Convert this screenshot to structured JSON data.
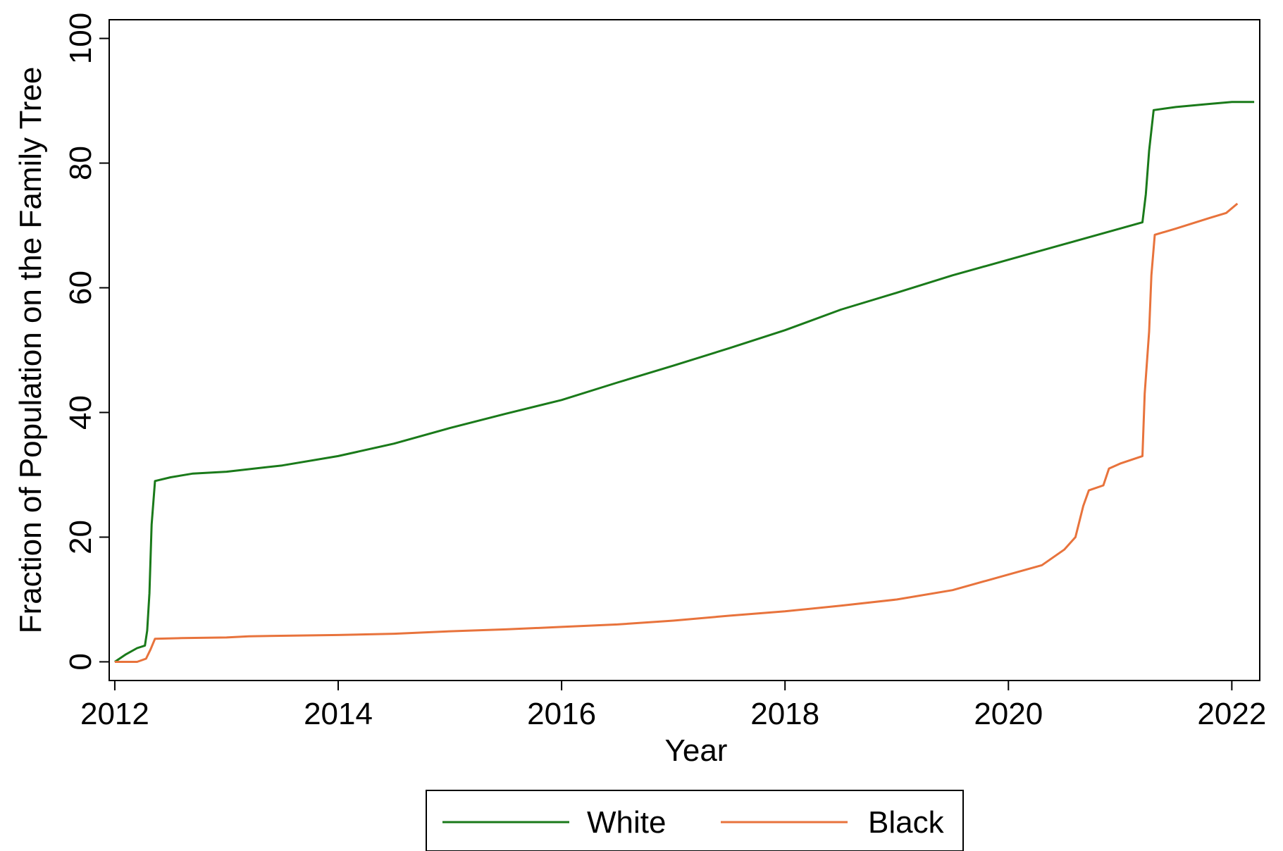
{
  "chart_data": {
    "type": "line",
    "title": "",
    "xlabel": "Year",
    "ylabel": "Fraction of Population on the Family Tree",
    "xlim": [
      2011.95,
      2022.25
    ],
    "ylim": [
      -3,
      103
    ],
    "xticks": [
      2012,
      2014,
      2016,
      2018,
      2020,
      2022
    ],
    "yticks": [
      0,
      20,
      40,
      60,
      80,
      100
    ],
    "grid": false,
    "legend_position": "bottom",
    "series": [
      {
        "name": "White",
        "color": "#1a7a1a",
        "points": [
          [
            2012.0,
            0
          ],
          [
            2012.1,
            1.2
          ],
          [
            2012.2,
            2.2
          ],
          [
            2012.27,
            2.6
          ],
          [
            2012.29,
            5
          ],
          [
            2012.31,
            11
          ],
          [
            2012.33,
            22
          ],
          [
            2012.36,
            29
          ],
          [
            2012.5,
            29.6
          ],
          [
            2012.7,
            30.2
          ],
          [
            2013.0,
            30.5
          ],
          [
            2013.5,
            31.5
          ],
          [
            2014.0,
            33
          ],
          [
            2014.5,
            35
          ],
          [
            2015.0,
            37.5
          ],
          [
            2015.5,
            39.8
          ],
          [
            2016.0,
            42
          ],
          [
            2016.5,
            44.8
          ],
          [
            2017.0,
            47.5
          ],
          [
            2017.5,
            50.3
          ],
          [
            2018.0,
            53.2
          ],
          [
            2018.5,
            56.5
          ],
          [
            2019.0,
            59.2
          ],
          [
            2019.5,
            62
          ],
          [
            2020.0,
            64.5
          ],
          [
            2020.5,
            67
          ],
          [
            2021.0,
            69.5
          ],
          [
            2021.2,
            70.5
          ],
          [
            2021.23,
            75
          ],
          [
            2021.26,
            82
          ],
          [
            2021.3,
            88.5
          ],
          [
            2021.5,
            89
          ],
          [
            2021.8,
            89.5
          ],
          [
            2022.0,
            89.8
          ],
          [
            2022.2,
            89.8
          ]
        ]
      },
      {
        "name": "Black",
        "color": "#e8733c",
        "points": [
          [
            2012.0,
            0
          ],
          [
            2012.2,
            0
          ],
          [
            2012.28,
            0.5
          ],
          [
            2012.32,
            2
          ],
          [
            2012.36,
            3.7
          ],
          [
            2012.6,
            3.8
          ],
          [
            2013.0,
            3.9
          ],
          [
            2013.2,
            4.1
          ],
          [
            2014.0,
            4.3
          ],
          [
            2014.5,
            4.5
          ],
          [
            2015.0,
            4.9
          ],
          [
            2015.5,
            5.2
          ],
          [
            2016.0,
            5.6
          ],
          [
            2016.5,
            6
          ],
          [
            2017.0,
            6.6
          ],
          [
            2017.5,
            7.4
          ],
          [
            2018.0,
            8.1
          ],
          [
            2018.5,
            9
          ],
          [
            2019.0,
            10
          ],
          [
            2019.5,
            11.5
          ],
          [
            2019.8,
            13
          ],
          [
            2020.0,
            14
          ],
          [
            2020.3,
            15.5
          ],
          [
            2020.5,
            18
          ],
          [
            2020.6,
            20
          ],
          [
            2020.67,
            25
          ],
          [
            2020.72,
            27.5
          ],
          [
            2020.85,
            28.3
          ],
          [
            2020.9,
            31
          ],
          [
            2021.0,
            31.8
          ],
          [
            2021.2,
            33
          ],
          [
            2021.22,
            43
          ],
          [
            2021.26,
            53
          ],
          [
            2021.28,
            62
          ],
          [
            2021.31,
            68.5
          ],
          [
            2021.5,
            69.5
          ],
          [
            2021.8,
            71.2
          ],
          [
            2021.95,
            72
          ],
          [
            2022.05,
            73.5
          ]
        ]
      }
    ]
  }
}
